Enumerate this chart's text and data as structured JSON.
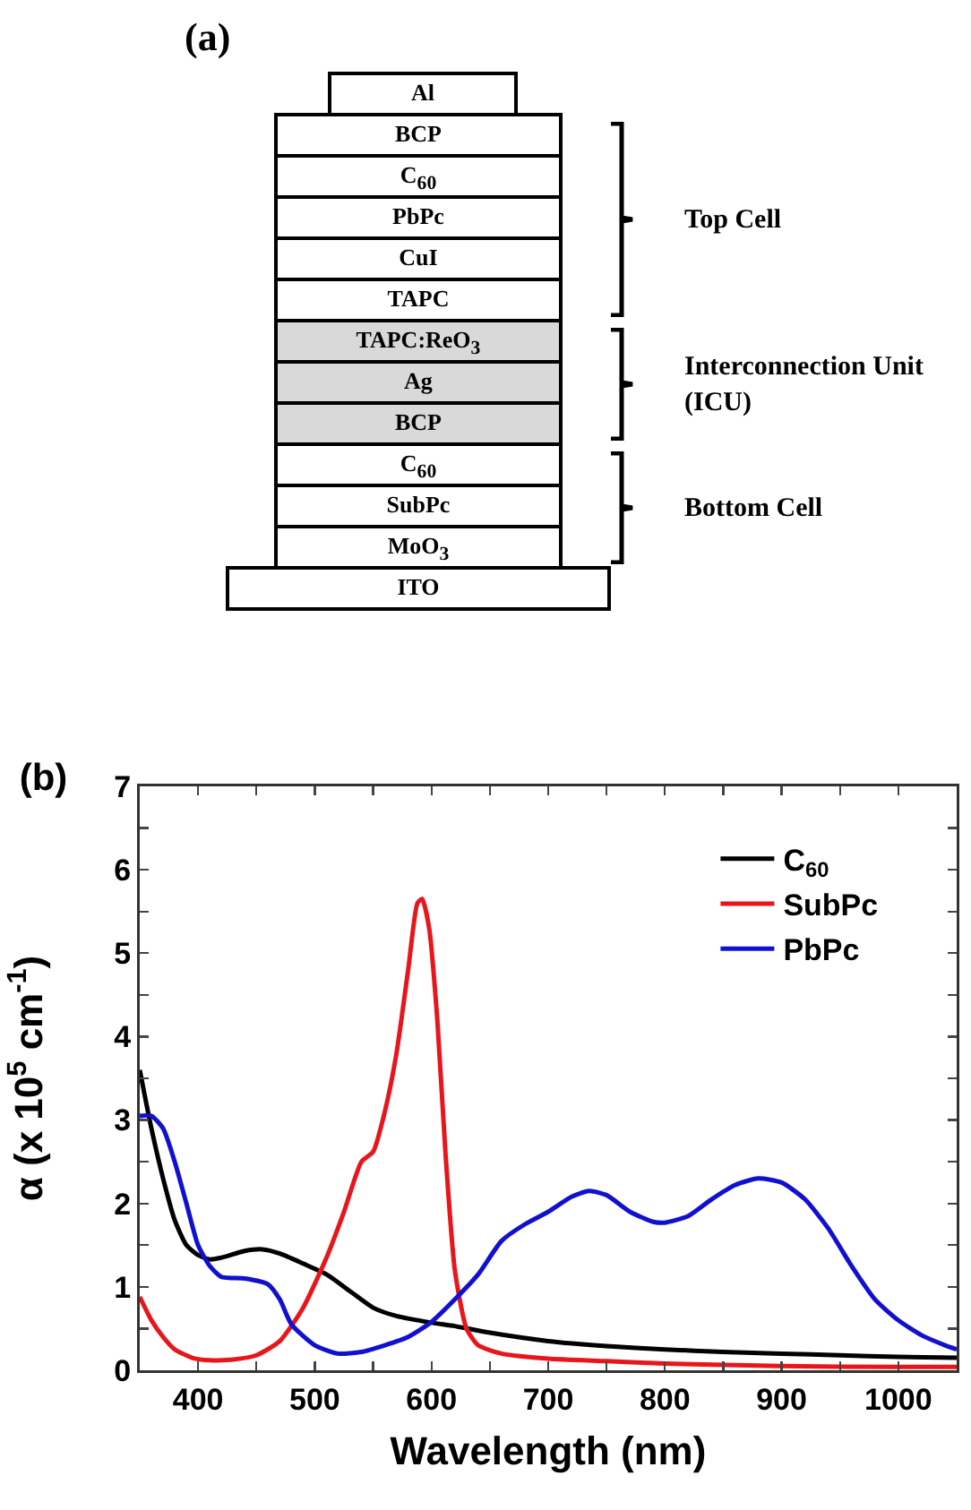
{
  "chart_data": [
    {
      "type": "other",
      "title": "(a)",
      "annotations": [
        "Al",
        "BCP",
        "C$_{60}$",
        "PbPc",
        "CuI",
        "TAPC",
        "TAPC:ReO$_{3}$",
        "Ag",
        "BCP",
        "C$_{60}$",
        "SubPc",
        "MoO$_{3}$",
        "ITO",
        "Top Cell",
        "Interconnection Unit (ICU)",
        "Bottom Cell"
      ]
    },
    {
      "type": "line",
      "title": "(b)",
      "xlabel": "Wavelength (nm)",
      "ylabel": "α (x 10$^{5}$ cm$^{-1}$)",
      "xlim": [
        350,
        1050
      ],
      "ylim": [
        0,
        7
      ],
      "xticks": [
        {
          "value": 350,
          "label": null
        },
        400,
        {
          "value": 450,
          "label": null
        },
        500,
        {
          "value": 550,
          "label": null
        },
        600,
        {
          "value": 650,
          "label": null
        },
        700,
        {
          "value": 750,
          "label": null
        },
        800,
        {
          "value": 850,
          "label": null
        },
        900,
        {
          "value": 950,
          "label": null
        },
        1000,
        {
          "value": 1050,
          "label": null
        }
      ],
      "yticks": [
        0,
        {
          "value": 0.5,
          "label": null
        },
        1,
        {
          "value": 1.5,
          "label": null
        },
        2,
        {
          "value": 2.5,
          "label": null
        },
        3,
        {
          "value": 3.5,
          "label": null
        },
        4,
        {
          "value": 4.5,
          "label": null
        },
        5,
        {
          "value": 5.5,
          "label": null
        },
        6,
        {
          "value": 6.5,
          "label": null
        },
        7
      ],
      "grid": false,
      "legend": "top right",
      "line_style": "solid",
      "marker": "none",
      "series": [
        {
          "name": "C$_{60}$",
          "color": "#000000",
          "x": [
            350,
            360,
            370,
            380,
            390,
            400,
            410,
            420,
            440,
            455,
            470,
            490,
            510,
            530,
            550,
            570,
            600,
            620,
            650,
            700,
            750,
            800,
            850,
            900,
            950,
            1000,
            1050
          ],
          "values": [
            3.6,
            2.9,
            2.3,
            1.8,
            1.5,
            1.38,
            1.33,
            1.35,
            1.43,
            1.45,
            1.4,
            1.28,
            1.15,
            0.95,
            0.75,
            0.65,
            0.57,
            0.53,
            0.45,
            0.35,
            0.29,
            0.25,
            0.22,
            0.2,
            0.18,
            0.16,
            0.15
          ]
        },
        {
          "name": "SubPc",
          "color": "#e8161b",
          "x": [
            350,
            360,
            370,
            380,
            395,
            410,
            430,
            450,
            470,
            490,
            510,
            525,
            540,
            550,
            560,
            570,
            580,
            588,
            592,
            598,
            605,
            612,
            620,
            630,
            640,
            660,
            700,
            750,
            800,
            900,
            1000,
            1050
          ],
          "values": [
            0.88,
            0.6,
            0.4,
            0.25,
            0.15,
            0.12,
            0.13,
            0.18,
            0.35,
            0.75,
            1.35,
            1.9,
            2.5,
            2.62,
            3.1,
            3.8,
            4.8,
            5.6,
            5.65,
            5.3,
            4.2,
            2.6,
            1.2,
            0.5,
            0.3,
            0.2,
            0.14,
            0.11,
            0.08,
            0.05,
            0.04,
            0.04
          ]
        },
        {
          "name": "PbPc",
          "color": "#1010d0",
          "x": [
            350,
            360,
            370,
            380,
            390,
            400,
            410,
            420,
            440,
            460,
            470,
            480,
            500,
            520,
            540,
            560,
            580,
            600,
            620,
            640,
            660,
            680,
            700,
            720,
            735,
            750,
            770,
            790,
            800,
            820,
            840,
            860,
            880,
            900,
            920,
            940,
            960,
            980,
            1000,
            1020,
            1040,
            1050
          ],
          "values": [
            3.05,
            3.05,
            2.9,
            2.5,
            2.0,
            1.5,
            1.25,
            1.12,
            1.1,
            1.03,
            0.85,
            0.55,
            0.3,
            0.2,
            0.22,
            0.3,
            0.4,
            0.58,
            0.85,
            1.15,
            1.55,
            1.75,
            1.9,
            2.08,
            2.15,
            2.1,
            1.9,
            1.78,
            1.77,
            1.85,
            2.05,
            2.22,
            2.3,
            2.25,
            2.05,
            1.7,
            1.25,
            0.85,
            0.6,
            0.42,
            0.3,
            0.25
          ]
        }
      ]
    }
  ]
}
